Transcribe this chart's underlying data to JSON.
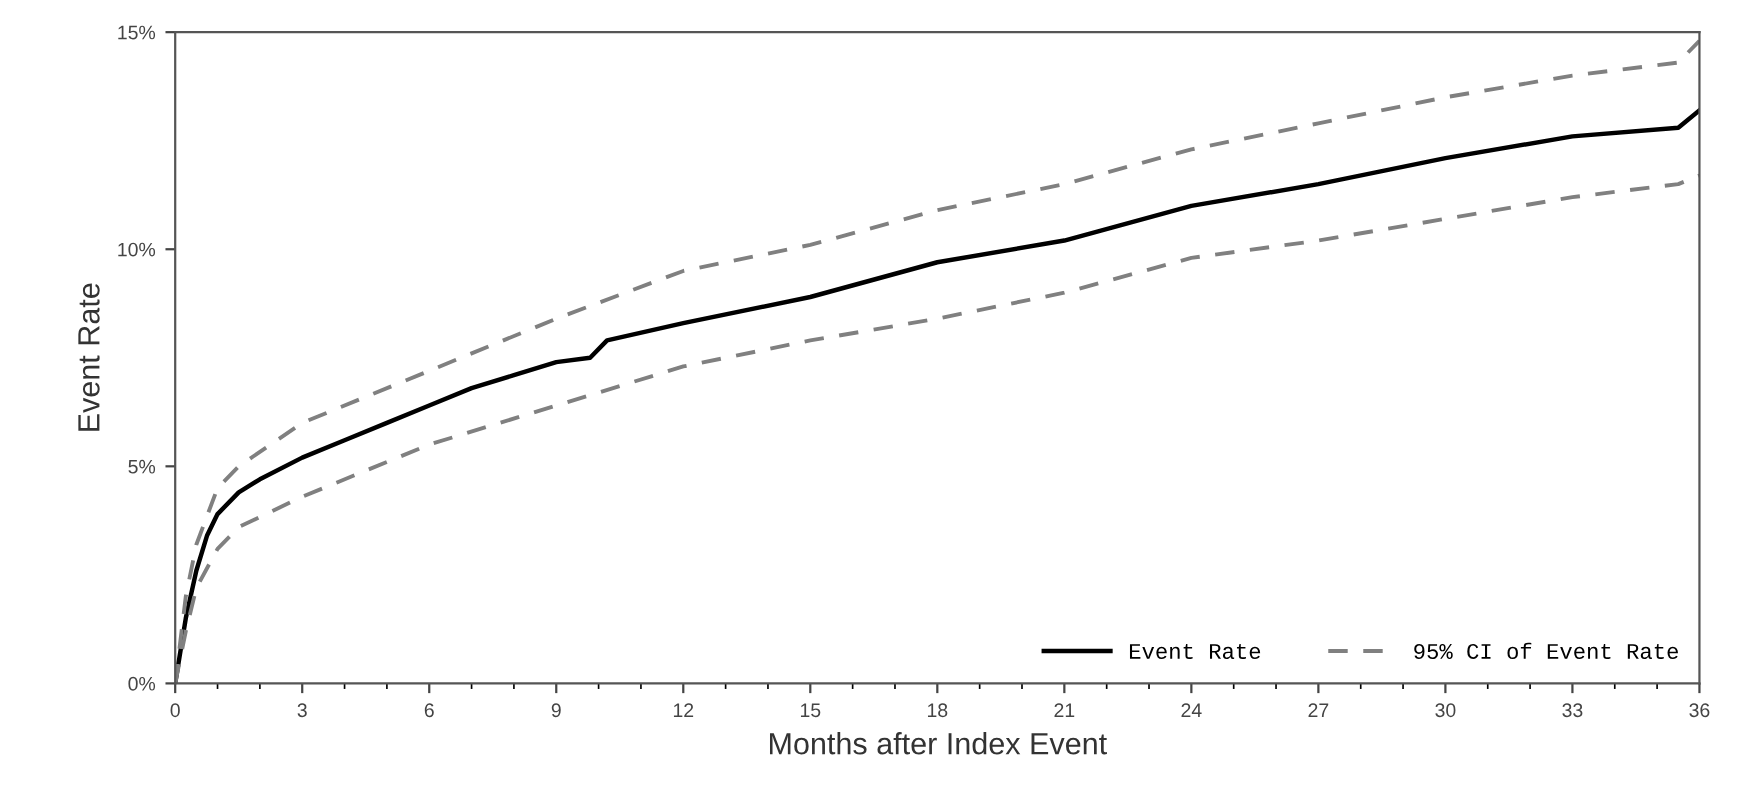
{
  "chart_data": {
    "type": "line",
    "xlabel": "Months after Index Event",
    "ylabel": "Event Rate",
    "xlim": [
      0,
      36
    ],
    "xticks": [
      0,
      3,
      6,
      9,
      12,
      15,
      18,
      21,
      24,
      27,
      30,
      33,
      36
    ],
    "ylim": [
      0,
      15
    ],
    "yticks": [
      {
        "value": 0,
        "label": "0%"
      },
      {
        "value": 5,
        "label": "5%"
      },
      {
        "value": 10,
        "label": "10%"
      },
      {
        "value": 15,
        "label": "15%"
      }
    ],
    "grid": false,
    "legend": "bottom right",
    "marker": "none",
    "series": [
      {
        "name": "Event Rate",
        "color": "#000000",
        "line_style": "solid",
        "x": [
          0,
          0.25,
          0.5,
          0.75,
          1,
          1.5,
          2,
          3,
          4,
          5,
          6,
          7,
          8,
          9,
          9.8,
          10.2,
          12,
          15,
          18,
          21,
          24,
          27,
          30,
          33,
          35.5,
          36
        ],
        "values": [
          0,
          1.5,
          2.6,
          3.4,
          3.9,
          4.4,
          4.7,
          5.2,
          5.6,
          6.0,
          6.4,
          6.8,
          7.1,
          7.4,
          7.5,
          7.9,
          8.3,
          8.9,
          9.7,
          10.2,
          11.0,
          11.5,
          12.1,
          12.6,
          12.8,
          13.2
        ]
      },
      {
        "name": "95% CI of Event Rate",
        "color": "#808080",
        "line_style": "dashed",
        "x": [
          0,
          0.25,
          0.5,
          1,
          1.5,
          3,
          6,
          9,
          12,
          15,
          18,
          21,
          24,
          27,
          30,
          33,
          35.5,
          36
        ],
        "values": [
          0,
          2.0,
          3.2,
          4.5,
          5.0,
          6.0,
          7.2,
          8.4,
          9.5,
          10.1,
          10.9,
          11.5,
          12.3,
          12.9,
          13.5,
          14.0,
          14.3,
          14.8
        ]
      },
      {
        "color": "#808080",
        "line_style": "dashed",
        "x": [
          0,
          0.25,
          0.5,
          1,
          1.5,
          3,
          6,
          9,
          12,
          15,
          18,
          21,
          24,
          27,
          30,
          33,
          35.5,
          36
        ],
        "values": [
          0,
          1.2,
          2.2,
          3.1,
          3.6,
          4.3,
          5.5,
          6.4,
          7.3,
          7.9,
          8.4,
          9.0,
          9.8,
          10.2,
          10.7,
          11.2,
          11.5,
          11.7
        ]
      }
    ]
  }
}
